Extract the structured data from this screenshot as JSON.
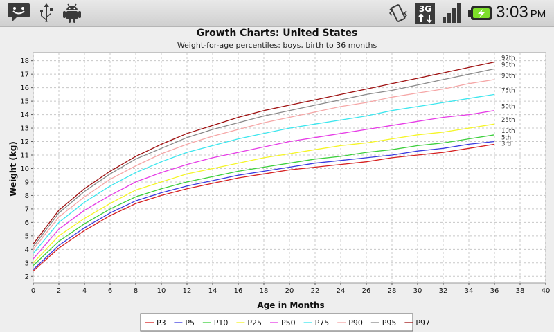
{
  "status_bar": {
    "time": "3:03",
    "am_pm": "PM",
    "network": "3G",
    "icons": [
      "notification-icon",
      "usb-icon",
      "android-debug-icon",
      "vibrate-icon",
      "network-3g-icon",
      "signal-icon",
      "battery-charging-icon"
    ]
  },
  "chart_data": {
    "type": "line",
    "title": "Growth Charts: United States",
    "subtitle": "Weight-for-age percentiles: boys, birth to 36 months",
    "xlabel": "Age in Months",
    "ylabel": "Weight (kg)",
    "xlim": [
      0,
      40
    ],
    "ylim": [
      1.5,
      18.6
    ],
    "xticks": [
      0,
      2,
      4,
      6,
      8,
      10,
      12,
      14,
      16,
      18,
      20,
      22,
      24,
      26,
      28,
      30,
      32,
      34,
      36,
      38,
      40
    ],
    "yticks": [
      2,
      3,
      4,
      5,
      6,
      7,
      8,
      9,
      10,
      11,
      12,
      13,
      14,
      15,
      16,
      17,
      18
    ],
    "grid": true,
    "legend_position": "bottom",
    "x": [
      0,
      2,
      4,
      6,
      8,
      10,
      12,
      14,
      16,
      18,
      20,
      22,
      24,
      26,
      28,
      30,
      32,
      34,
      36
    ],
    "series": [
      {
        "name": "P3",
        "end_label": "3rd",
        "color": "#d62020",
        "values": [
          2.4,
          4.1,
          5.4,
          6.5,
          7.4,
          8.0,
          8.5,
          8.9,
          9.3,
          9.6,
          9.9,
          10.1,
          10.3,
          10.5,
          10.8,
          11.0,
          11.2,
          11.5,
          11.8
        ]
      },
      {
        "name": "P5",
        "end_label": "5th",
        "color": "#3a3ae0",
        "values": [
          2.5,
          4.3,
          5.6,
          6.7,
          7.6,
          8.2,
          8.7,
          9.1,
          9.5,
          9.8,
          10.1,
          10.4,
          10.6,
          10.8,
          11.0,
          11.3,
          11.5,
          11.8,
          12.0
        ]
      },
      {
        "name": "P10",
        "end_label": "10th",
        "color": "#3ccf3c",
        "values": [
          2.8,
          4.6,
          5.9,
          7.0,
          7.9,
          8.5,
          9.0,
          9.4,
          9.8,
          10.1,
          10.4,
          10.7,
          10.9,
          11.2,
          11.4,
          11.7,
          11.9,
          12.2,
          12.5
        ]
      },
      {
        "name": "P25",
        "end_label": "25th",
        "color": "#f5f525",
        "values": [
          3.0,
          5.0,
          6.3,
          7.4,
          8.4,
          9.0,
          9.6,
          10.0,
          10.4,
          10.8,
          11.1,
          11.4,
          11.7,
          11.9,
          12.2,
          12.5,
          12.7,
          13.0,
          13.3
        ]
      },
      {
        "name": "P50",
        "end_label": "50th",
        "color": "#e63ce6",
        "values": [
          3.3,
          5.5,
          6.9,
          8.0,
          9.0,
          9.7,
          10.3,
          10.8,
          11.2,
          11.6,
          12.0,
          12.3,
          12.6,
          12.9,
          13.2,
          13.5,
          13.8,
          14.0,
          14.3
        ]
      },
      {
        "name": "P75",
        "end_label": "75th",
        "color": "#3ce6ee",
        "values": [
          3.7,
          6.0,
          7.5,
          8.7,
          9.7,
          10.5,
          11.2,
          11.7,
          12.2,
          12.6,
          13.0,
          13.3,
          13.6,
          13.9,
          14.3,
          14.6,
          14.9,
          15.2,
          15.5
        ]
      },
      {
        "name": "P90",
        "end_label": "90th",
        "color": "#f5a6a6",
        "values": [
          4.0,
          6.4,
          7.9,
          9.2,
          10.2,
          11.1,
          11.8,
          12.4,
          12.9,
          13.4,
          13.8,
          14.2,
          14.6,
          14.9,
          15.3,
          15.6,
          15.9,
          16.3,
          16.6
        ]
      },
      {
        "name": "P95",
        "end_label": "95th",
        "color": "#8a8a8a",
        "values": [
          4.2,
          6.7,
          8.3,
          9.6,
          10.7,
          11.5,
          12.3,
          12.9,
          13.4,
          13.9,
          14.3,
          14.7,
          15.1,
          15.5,
          15.8,
          16.2,
          16.6,
          17.0,
          17.4
        ]
      },
      {
        "name": "P97",
        "end_label": "97th",
        "color": "#9e1010",
        "values": [
          4.4,
          6.9,
          8.5,
          9.8,
          10.9,
          11.8,
          12.6,
          13.2,
          13.8,
          14.3,
          14.7,
          15.1,
          15.5,
          15.9,
          16.3,
          16.7,
          17.1,
          17.5,
          17.9
        ]
      }
    ]
  }
}
